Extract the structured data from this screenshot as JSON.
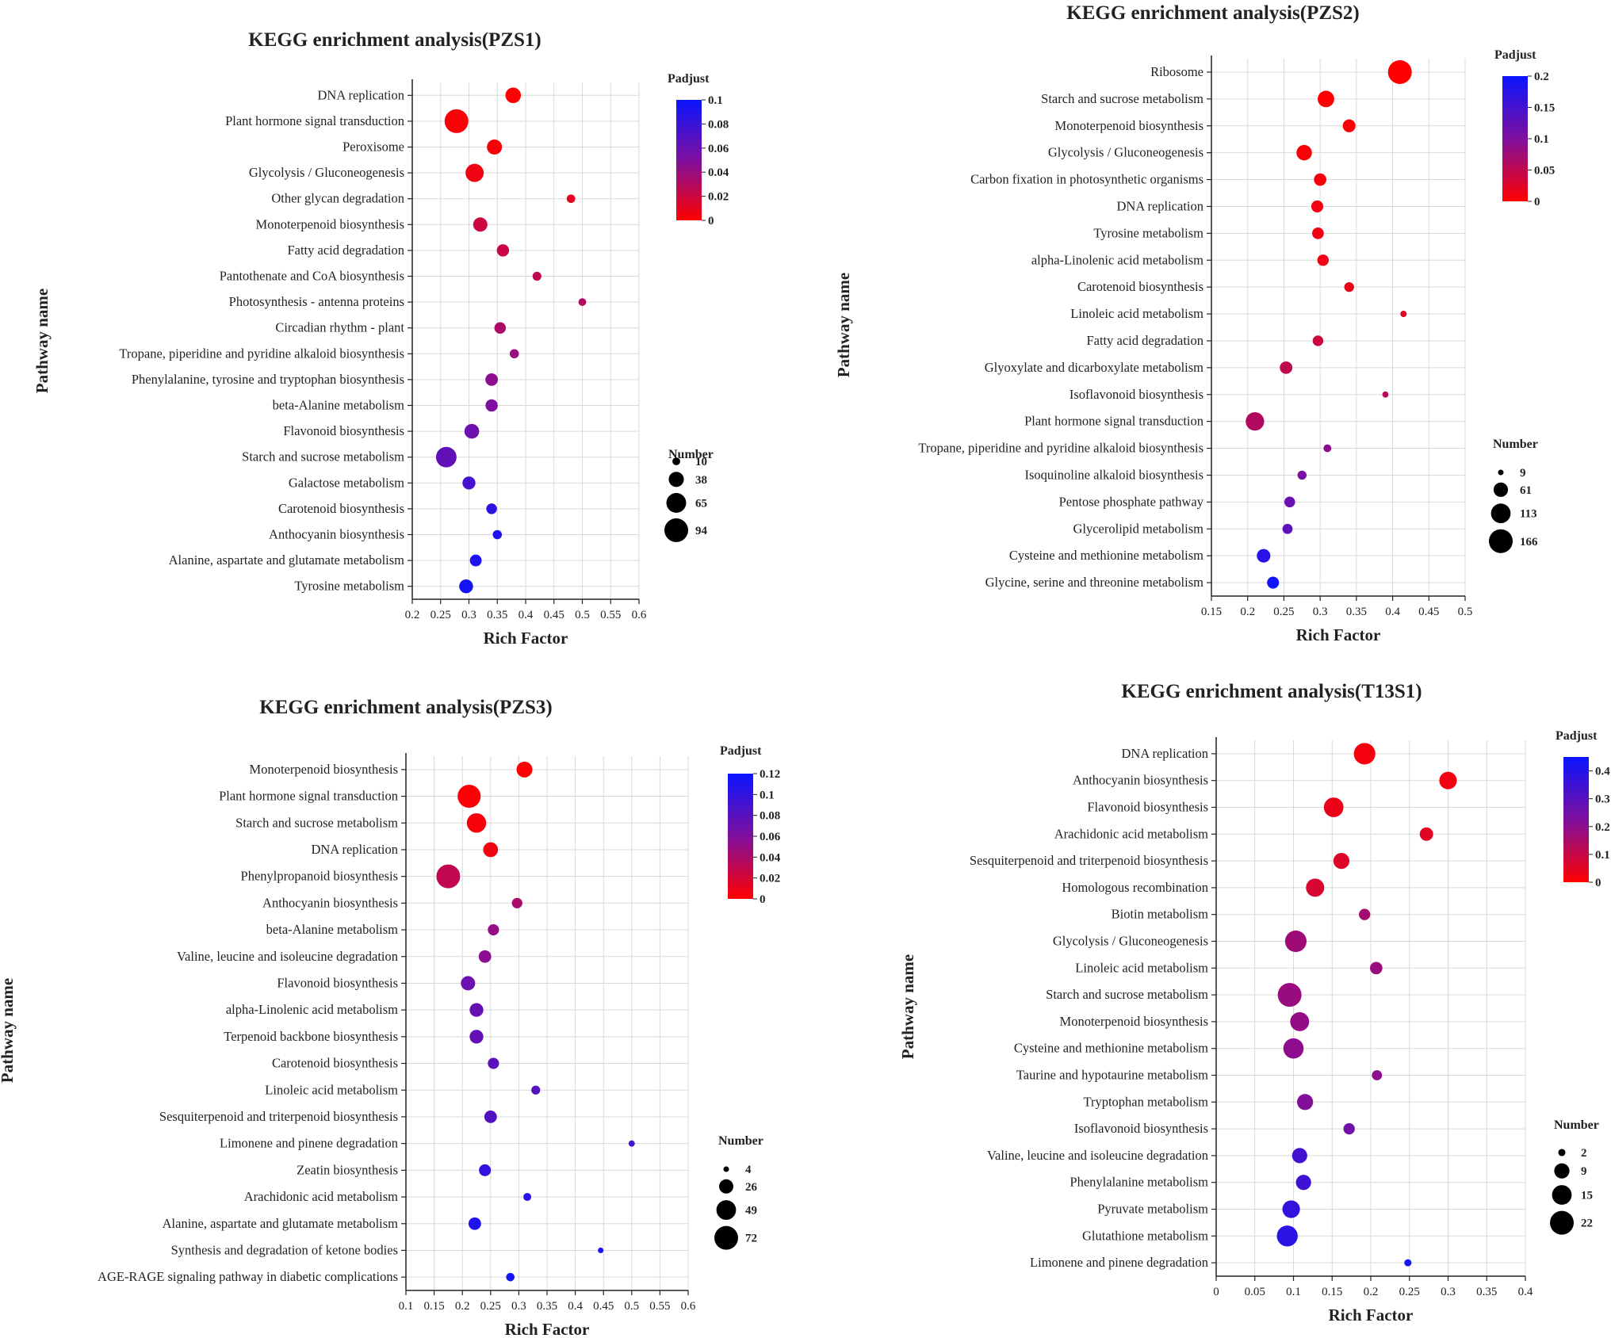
{
  "colors": {
    "low": "#ff0000",
    "mid": "#7f0f9e",
    "high": "#0a14ff",
    "grid": "#d9d9d9",
    "axis": "#222222"
  },
  "chart_data": [
    {
      "type": "scatter",
      "title": "KEGG enrichment analysis(PZS1)",
      "xlabel": "Rich Factor",
      "ylabel": "Pathway name",
      "xlim": [
        0.2,
        0.6
      ],
      "xticks": [
        "0.2",
        "0.25",
        "0.3",
        "0.35",
        "0.4",
        "0.45",
        "0.5",
        "0.55",
        "0.6"
      ],
      "color_legend": {
        "title": "Padjust",
        "max": 0.1,
        "ticks": [
          "0.1",
          "0.08",
          "0.06",
          "0.04",
          "0.02",
          "0"
        ]
      },
      "size_legend": {
        "title": "Number",
        "max": 94,
        "labels": [
          "10",
          "38",
          "65",
          "94"
        ]
      },
      "points": [
        {
          "pathway": "DNA replication",
          "rich_factor": 0.378,
          "number": 40,
          "padjust": 0.001
        },
        {
          "pathway": "Plant hormone signal transduction",
          "rich_factor": 0.278,
          "number": 94,
          "padjust": 0.002
        },
        {
          "pathway": "Peroxisome",
          "rich_factor": 0.345,
          "number": 38,
          "padjust": 0.003
        },
        {
          "pathway": "Glycolysis / Gluconeogenesis",
          "rich_factor": 0.31,
          "number": 55,
          "padjust": 0.006
        },
        {
          "pathway": "Other glycan degradation",
          "rich_factor": 0.48,
          "number": 12,
          "padjust": 0.01
        },
        {
          "pathway": "Monoterpenoid biosynthesis",
          "rich_factor": 0.32,
          "number": 34,
          "padjust": 0.02
        },
        {
          "pathway": "Fatty acid degradation",
          "rich_factor": 0.36,
          "number": 25,
          "padjust": 0.022
        },
        {
          "pathway": "Pantothenate and CoA biosynthesis",
          "rich_factor": 0.42,
          "number": 13,
          "padjust": 0.025
        },
        {
          "pathway": "Photosynthesis - antenna proteins",
          "rich_factor": 0.5,
          "number": 10,
          "padjust": 0.03
        },
        {
          "pathway": "Circadian rhythm - plant",
          "rich_factor": 0.355,
          "number": 22,
          "padjust": 0.033
        },
        {
          "pathway": "Tropane, piperidine and pyridine alkaloid biosynthesis",
          "rich_factor": 0.38,
          "number": 14,
          "padjust": 0.04
        },
        {
          "pathway": "Phenylalanine, tyrosine and tryptophan biosynthesis",
          "rich_factor": 0.34,
          "number": 26,
          "padjust": 0.045
        },
        {
          "pathway": "beta-Alanine metabolism",
          "rich_factor": 0.34,
          "number": 25,
          "padjust": 0.05
        },
        {
          "pathway": "Flavonoid biosynthesis",
          "rich_factor": 0.305,
          "number": 36,
          "padjust": 0.058
        },
        {
          "pathway": "Starch and sucrose metabolism",
          "rich_factor": 0.26,
          "number": 70,
          "padjust": 0.063
        },
        {
          "pathway": "Galactose metabolism",
          "rich_factor": 0.3,
          "number": 28,
          "padjust": 0.075
        },
        {
          "pathway": "Carotenoid biosynthesis",
          "rich_factor": 0.34,
          "number": 19,
          "padjust": 0.085
        },
        {
          "pathway": "Anthocyanin biosynthesis",
          "rich_factor": 0.35,
          "number": 14,
          "padjust": 0.09
        },
        {
          "pathway": "Alanine, aspartate and glutamate metabolism",
          "rich_factor": 0.312,
          "number": 23,
          "padjust": 0.092
        },
        {
          "pathway": "Tyrosine metabolism",
          "rich_factor": 0.295,
          "number": 32,
          "padjust": 0.095
        }
      ]
    },
    {
      "type": "scatter",
      "title": "KEGG enrichment analysis(PZS2)",
      "xlabel": "Rich Factor",
      "ylabel": "Pathway name",
      "xlim": [
        0.15,
        0.5
      ],
      "xticks": [
        "0.15",
        "0.2",
        "0.25",
        "0.3",
        "0.35",
        "0.4",
        "0.45",
        "0.5"
      ],
      "color_legend": {
        "title": "Padjust",
        "max": 0.2,
        "ticks": [
          "0.2",
          "0.15",
          "0.1",
          "0.05",
          "0"
        ]
      },
      "size_legend": {
        "title": "Number",
        "max": 166,
        "labels": [
          "9",
          "61",
          "113",
          "166"
        ]
      },
      "points": [
        {
          "pathway": "Ribosome",
          "rich_factor": 0.41,
          "number": 166,
          "padjust": 0.0
        },
        {
          "pathway": "Starch and sucrose metabolism",
          "rich_factor": 0.308,
          "number": 80,
          "padjust": 0.002
        },
        {
          "pathway": "Monoterpenoid biosynthesis",
          "rich_factor": 0.34,
          "number": 48,
          "padjust": 0.004
        },
        {
          "pathway": "Glycolysis / Gluconeogenesis",
          "rich_factor": 0.278,
          "number": 70,
          "padjust": 0.006
        },
        {
          "pathway": "Carbon fixation in photosynthetic organisms",
          "rich_factor": 0.3,
          "number": 45,
          "padjust": 0.008
        },
        {
          "pathway": "DNA replication",
          "rich_factor": 0.296,
          "number": 42,
          "padjust": 0.01
        },
        {
          "pathway": "Tyrosine metabolism",
          "rich_factor": 0.297,
          "number": 40,
          "padjust": 0.012
        },
        {
          "pathway": "alpha-Linolenic acid metabolism",
          "rich_factor": 0.304,
          "number": 38,
          "padjust": 0.014
        },
        {
          "pathway": "Carotenoid biosynthesis",
          "rich_factor": 0.34,
          "number": 28,
          "padjust": 0.018
        },
        {
          "pathway": "Linoleic acid metabolism",
          "rich_factor": 0.415,
          "number": 12,
          "padjust": 0.025
        },
        {
          "pathway": "Fatty acid degradation",
          "rich_factor": 0.297,
          "number": 33,
          "padjust": 0.04
        },
        {
          "pathway": "Glyoxylate and dicarboxylate metabolism",
          "rich_factor": 0.253,
          "number": 46,
          "padjust": 0.05
        },
        {
          "pathway": "Isoflavonoid biosynthesis",
          "rich_factor": 0.39,
          "number": 11,
          "padjust": 0.055
        },
        {
          "pathway": "Plant hormone signal transduction",
          "rich_factor": 0.21,
          "number": 100,
          "padjust": 0.06
        },
        {
          "pathway": "Tropane, piperidine and pyridine alkaloid biosynthesis",
          "rich_factor": 0.31,
          "number": 18,
          "padjust": 0.09
        },
        {
          "pathway": "Isoquinoline alkaloid biosynthesis",
          "rich_factor": 0.275,
          "number": 24,
          "padjust": 0.105
        },
        {
          "pathway": "Pentose phosphate pathway",
          "rich_factor": 0.258,
          "number": 34,
          "padjust": 0.12
        },
        {
          "pathway": "Glycerolipid metabolism",
          "rich_factor": 0.255,
          "number": 30,
          "padjust": 0.13
        },
        {
          "pathway": "Cysteine and methionine metabolism",
          "rich_factor": 0.222,
          "number": 54,
          "padjust": 0.175
        },
        {
          "pathway": "Glycine, serine and threonine metabolism",
          "rich_factor": 0.235,
          "number": 42,
          "padjust": 0.195
        }
      ]
    },
    {
      "type": "scatter",
      "title": "KEGG enrichment analysis(PZS3)",
      "xlabel": "Rich Factor",
      "ylabel": "Pathway name",
      "xlim": [
        0.1,
        0.6
      ],
      "xticks": [
        "0.1",
        "0.15",
        "0.2",
        "0.25",
        "0.3",
        "0.35",
        "0.4",
        "0.45",
        "0.5",
        "0.55",
        "0.6"
      ],
      "color_legend": {
        "title": "Padjust",
        "max": 0.12,
        "ticks": [
          "0.12",
          "0.1",
          "0.08",
          "0.06",
          "0.04",
          "0.02",
          "0"
        ]
      },
      "size_legend": {
        "title": "Number",
        "max": 72,
        "labels": [
          "4",
          "26",
          "49",
          "72"
        ]
      },
      "points": [
        {
          "pathway": "Monoterpenoid biosynthesis",
          "rich_factor": 0.31,
          "number": 32,
          "padjust": 0.001
        },
        {
          "pathway": "Plant hormone signal transduction",
          "rich_factor": 0.212,
          "number": 68,
          "padjust": 0.002
        },
        {
          "pathway": "Starch and sucrose metabolism",
          "rich_factor": 0.225,
          "number": 48,
          "padjust": 0.004
        },
        {
          "pathway": "DNA replication",
          "rich_factor": 0.25,
          "number": 28,
          "padjust": 0.006
        },
        {
          "pathway": "Phenylpropanoid biosynthesis",
          "rich_factor": 0.175,
          "number": 72,
          "padjust": 0.03
        },
        {
          "pathway": "Anthocyanin biosynthesis",
          "rich_factor": 0.297,
          "number": 14,
          "padjust": 0.04
        },
        {
          "pathway": "beta-Alanine metabolism",
          "rich_factor": 0.255,
          "number": 16,
          "padjust": 0.05
        },
        {
          "pathway": "Valine, leucine and isoleucine degradation",
          "rich_factor": 0.24,
          "number": 20,
          "padjust": 0.055
        },
        {
          "pathway": "Flavonoid biosynthesis",
          "rich_factor": 0.21,
          "number": 26,
          "padjust": 0.07
        },
        {
          "pathway": "alpha-Linolenic acid metabolism",
          "rich_factor": 0.225,
          "number": 24,
          "padjust": 0.073
        },
        {
          "pathway": "Terpenoid backbone biosynthesis",
          "rich_factor": 0.225,
          "number": 24,
          "padjust": 0.075
        },
        {
          "pathway": "Carotenoid biosynthesis",
          "rich_factor": 0.255,
          "number": 16,
          "padjust": 0.078
        },
        {
          "pathway": "Linoleic acid metabolism",
          "rich_factor": 0.33,
          "number": 10,
          "padjust": 0.08
        },
        {
          "pathway": "Sesquiterpenoid and triterpenoid biosynthesis",
          "rich_factor": 0.25,
          "number": 20,
          "padjust": 0.082
        },
        {
          "pathway": "Limonene and pinene degradation",
          "rich_factor": 0.5,
          "number": 5,
          "padjust": 0.09
        },
        {
          "pathway": "Zeatin biosynthesis",
          "rich_factor": 0.24,
          "number": 18,
          "padjust": 0.1
        },
        {
          "pathway": "Arachidonic acid metabolism",
          "rich_factor": 0.315,
          "number": 8,
          "padjust": 0.105
        },
        {
          "pathway": "Alanine, aspartate and glutamate metabolism",
          "rich_factor": 0.222,
          "number": 20,
          "padjust": 0.108
        },
        {
          "pathway": "Synthesis and degradation of ketone bodies",
          "rich_factor": 0.445,
          "number": 4,
          "padjust": 0.112
        },
        {
          "pathway": "AGE-RAGE signaling pathway in diabetic complications",
          "rich_factor": 0.285,
          "number": 9,
          "padjust": 0.115
        }
      ]
    },
    {
      "type": "scatter",
      "title": "KEGG enrichment analysis(T13S1)",
      "xlabel": "Rich Factor",
      "ylabel": "Pathway name",
      "xlim": [
        0,
        0.4
      ],
      "xticks": [
        "0",
        "0.05",
        "0.1",
        "0.15",
        "0.2",
        "0.25",
        "0.3",
        "0.35",
        "0.4"
      ],
      "color_legend": {
        "title": "Padjust",
        "max": 0.45,
        "ticks": [
          "0.4",
          "0.3",
          "0.2",
          "0.1",
          "0"
        ]
      },
      "size_legend": {
        "title": "Number",
        "max": 22,
        "labels": [
          "2",
          "9",
          "15",
          "22"
        ]
      },
      "points": [
        {
          "pathway": "DNA replication",
          "rich_factor": 0.192,
          "number": 18,
          "padjust": 0.02
        },
        {
          "pathway": "Anthocyanin biosynthesis",
          "rich_factor": 0.3,
          "number": 12,
          "padjust": 0.025
        },
        {
          "pathway": "Flavonoid biosynthesis",
          "rich_factor": 0.152,
          "number": 15,
          "padjust": 0.035
        },
        {
          "pathway": "Arachidonic acid metabolism",
          "rich_factor": 0.272,
          "number": 7,
          "padjust": 0.05
        },
        {
          "pathway": "Sesquiterpenoid and triterpenoid biosynthesis",
          "rich_factor": 0.162,
          "number": 10,
          "padjust": 0.06
        },
        {
          "pathway": "Homologous recombination",
          "rich_factor": 0.128,
          "number": 13,
          "padjust": 0.07
        },
        {
          "pathway": "Biotin metabolism",
          "rich_factor": 0.192,
          "number": 5,
          "padjust": 0.16
        },
        {
          "pathway": "Glycolysis / Gluconeogenesis",
          "rich_factor": 0.103,
          "number": 18,
          "padjust": 0.17
        },
        {
          "pathway": "Linoleic acid metabolism",
          "rich_factor": 0.207,
          "number": 6,
          "padjust": 0.18
        },
        {
          "pathway": "Starch and sucrose metabolism",
          "rich_factor": 0.095,
          "number": 22,
          "padjust": 0.18
        },
        {
          "pathway": "Monoterpenoid biosynthesis",
          "rich_factor": 0.108,
          "number": 14,
          "padjust": 0.19
        },
        {
          "pathway": "Cysteine and methionine metabolism",
          "rich_factor": 0.1,
          "number": 16,
          "padjust": 0.2
        },
        {
          "pathway": "Taurine and hypotaurine metabolism",
          "rich_factor": 0.208,
          "number": 4,
          "padjust": 0.2
        },
        {
          "pathway": "Tryptophan metabolism",
          "rich_factor": 0.115,
          "number": 10,
          "padjust": 0.22
        },
        {
          "pathway": "Isoflavonoid biosynthesis",
          "rich_factor": 0.172,
          "number": 5,
          "padjust": 0.25
        },
        {
          "pathway": "Valine, leucine and isoleucine degradation",
          "rich_factor": 0.108,
          "number": 9,
          "padjust": 0.34
        },
        {
          "pathway": "Phenylalanine metabolism",
          "rich_factor": 0.113,
          "number": 9,
          "padjust": 0.35
        },
        {
          "pathway": "Pyruvate metabolism",
          "rich_factor": 0.097,
          "number": 12,
          "padjust": 0.37
        },
        {
          "pathway": "Glutathione metabolism",
          "rich_factor": 0.092,
          "number": 17,
          "padjust": 0.39
        },
        {
          "pathway": "Limonene and pinene degradation",
          "rich_factor": 0.248,
          "number": 2,
          "padjust": 0.42
        }
      ]
    }
  ]
}
